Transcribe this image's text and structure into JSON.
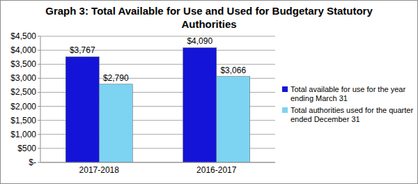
{
  "chart_data": {
    "type": "bar",
    "title": "Graph 3: Total Available for Use and Used for Budgetary Statutory Authorities",
    "categories": [
      "2017-2018",
      "2016-2017"
    ],
    "series": [
      {
        "name": "Total available for use for the year ending March 31",
        "color": "#1414d8",
        "values": [
          3767,
          4090
        ],
        "value_labels": [
          "$3,767",
          "$4,090"
        ]
      },
      {
        "name": "Total authorities used for the quarter ended December 31",
        "color": "#7dd3f2",
        "values": [
          2790,
          3066
        ],
        "value_labels": [
          "$2,790",
          "$3,066"
        ]
      }
    ],
    "ylim": [
      0,
      4500
    ],
    "yticks": [
      {
        "value": 0,
        "label": "$-"
      },
      {
        "value": 500,
        "label": "$500"
      },
      {
        "value": 1000,
        "label": "$1,000"
      },
      {
        "value": 1500,
        "label": "$1,500"
      },
      {
        "value": 2000,
        "label": "$2,000"
      },
      {
        "value": 2500,
        "label": "$2,500"
      },
      {
        "value": 3000,
        "label": "$3,000"
      },
      {
        "value": 3500,
        "label": "$3,500"
      },
      {
        "value": 4000,
        "label": "$4,000"
      },
      {
        "value": 4500,
        "label": "$4,500"
      }
    ],
    "grid": true,
    "legend": "right",
    "data_labels": true
  }
}
